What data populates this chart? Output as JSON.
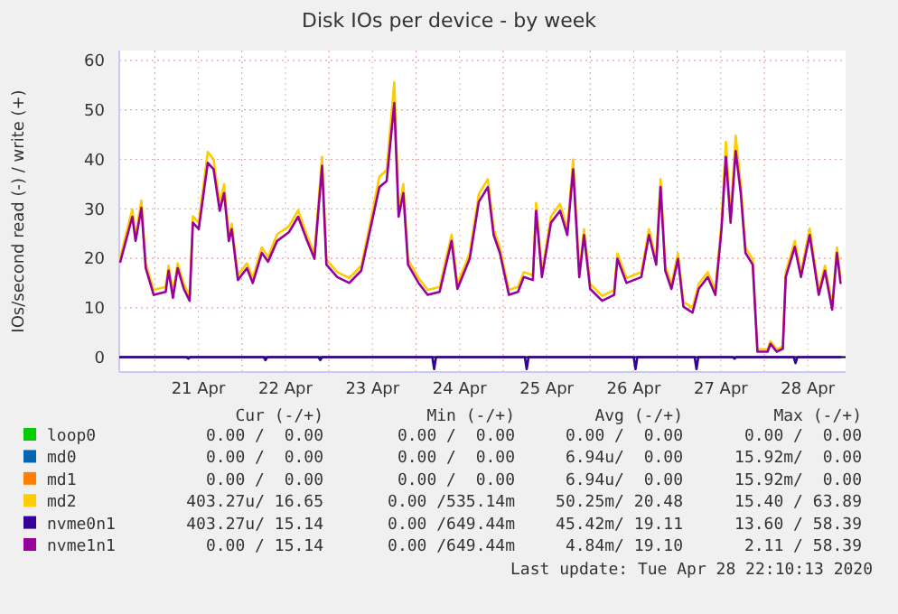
{
  "chart_data": {
    "type": "line",
    "title": "Disk IOs per device - by week",
    "ylabel": "IOs/second read (-) / write (+)",
    "xlim": [
      "2020-04-20T14:12",
      "2020-04-28T22:24"
    ],
    "xticks": [
      {
        "value": "2020-04-21T00:00",
        "label": null
      },
      {
        "value": "2020-04-21T12:00",
        "label": "21 Apr"
      },
      {
        "value": "2020-04-22T00:00",
        "label": null
      },
      {
        "value": "2020-04-22T12:00",
        "label": "22 Apr"
      },
      {
        "value": "2020-04-23T00:00",
        "label": null
      },
      {
        "value": "2020-04-23T12:00",
        "label": "23 Apr"
      },
      {
        "value": "2020-04-24T00:00",
        "label": null
      },
      {
        "value": "2020-04-24T12:00",
        "label": "24 Apr"
      },
      {
        "value": "2020-04-25T00:00",
        "label": null
      },
      {
        "value": "2020-04-25T12:00",
        "label": "25 Apr"
      },
      {
        "value": "2020-04-26T00:00",
        "label": null
      },
      {
        "value": "2020-04-26T12:00",
        "label": "26 Apr"
      },
      {
        "value": "2020-04-27T00:00",
        "label": null
      },
      {
        "value": "2020-04-27T12:00",
        "label": "27 Apr"
      },
      {
        "value": "2020-04-28T00:00",
        "label": null
      },
      {
        "value": "2020-04-28T12:00",
        "label": "28 Apr"
      }
    ],
    "ylim": [
      -3,
      62
    ],
    "yticks": [
      0,
      10,
      20,
      30,
      40,
      50,
      60
    ],
    "grid": true,
    "legend": "bottom",
    "marker": "none",
    "line_style": "solid",
    "x": [
      "2020-04-20T14:30",
      "2020-04-20T17:48",
      "2020-04-20T18:42",
      "2020-04-20T20:18",
      "2020-04-20T21:30",
      "2020-04-20T23:42",
      "2020-04-21T03:00",
      "2020-04-21T03:48",
      "2020-04-21T05:00",
      "2020-04-21T06:18",
      "2020-04-21T08:00",
      "2020-04-21T09:36",
      "2020-04-21T10:30",
      "2020-04-21T12:06",
      "2020-04-21T14:36",
      "2020-04-21T16:12",
      "2020-04-21T17:54",
      "2020-04-21T19:06",
      "2020-04-21T20:24",
      "2020-04-21T21:12",
      "2020-04-21T22:54",
      "2020-04-22T01:24",
      "2020-04-22T03:00",
      "2020-04-22T05:30",
      "2020-04-22T07:12",
      "2020-04-22T09:42",
      "2020-04-22T13:00",
      "2020-04-22T15:30",
      "2020-04-22T18:00",
      "2020-04-22T20:00",
      "2020-04-22T22:06",
      "2020-04-22T23:18",
      "2020-04-23T02:18",
      "2020-04-23T05:36",
      "2020-04-23T08:54",
      "2020-04-23T11:24",
      "2020-04-23T13:54",
      "2020-04-23T15:54",
      "2020-04-23T18:00",
      "2020-04-23T19:12",
      "2020-04-23T20:30",
      "2020-04-23T21:48",
      "2020-04-24T00:42",
      "2020-04-24T03:12",
      "2020-04-24T06:30",
      "2020-04-24T09:48",
      "2020-04-24T11:24",
      "2020-04-24T14:48",
      "2020-04-24T17:18",
      "2020-04-24T19:48",
      "2020-04-24T21:24",
      "2020-04-24T23:06",
      "2020-04-25T01:36",
      "2020-04-25T04:06",
      "2020-04-25T05:42",
      "2020-04-25T08:12",
      "2020-04-25T09:06",
      "2020-04-25T10:42",
      "2020-04-25T13:12",
      "2020-04-25T15:42",
      "2020-04-25T17:42",
      "2020-04-25T19:18",
      "2020-04-25T21:00",
      "2020-04-25T22:18",
      "2020-04-26T00:00",
      "2020-04-26T03:18",
      "2020-04-26T06:36",
      "2020-04-26T07:30",
      "2020-04-26T10:00",
      "2020-04-26T14:06",
      "2020-04-26T16:12",
      "2020-04-26T18:12",
      "2020-04-26T19:24",
      "2020-04-26T20:42",
      "2020-04-26T22:24",
      "2020-04-27T00:12",
      "2020-04-27T01:42",
      "2020-04-27T04:12",
      "2020-04-27T05:54",
      "2020-04-27T08:24",
      "2020-04-27T10:30",
      "2020-04-27T12:12",
      "2020-04-27T13:24",
      "2020-04-27T14:42",
      "2020-04-27T16:06",
      "2020-04-27T17:30",
      "2020-04-27T18:48",
      "2020-04-27T20:48",
      "2020-04-27T22:06",
      "2020-04-28T00:54",
      "2020-04-28T01:42",
      "2020-04-28T03:24",
      "2020-04-28T05:06",
      "2020-04-28T05:54",
      "2020-04-28T08:24",
      "2020-04-28T10:06",
      "2020-04-28T12:30",
      "2020-04-28T15:00",
      "2020-04-28T16:42",
      "2020-04-28T18:42",
      "2020-04-28T20:00",
      "2020-04-28T21:00"
    ],
    "series": [
      {
        "name": "loop0",
        "color": "#00cc00",
        "values": [
          null,
          null,
          null,
          null,
          null,
          null,
          null,
          null,
          null,
          null,
          null,
          null,
          null,
          null,
          null,
          null,
          null,
          null,
          null,
          null,
          null,
          null,
          null,
          null,
          null,
          null,
          null,
          null,
          null,
          null,
          null,
          null,
          null,
          null,
          null,
          null,
          null,
          null,
          null,
          null,
          null,
          null,
          null,
          null,
          null,
          null,
          null,
          null,
          null,
          null,
          null,
          null,
          null,
          null,
          null,
          null,
          null,
          null,
          null,
          null,
          null,
          null,
          null,
          null,
          null,
          null,
          null,
          null,
          null,
          null,
          null,
          null,
          null,
          null,
          null,
          null,
          null,
          null,
          null,
          null,
          null,
          null,
          null,
          null,
          null,
          null,
          null,
          null,
          null,
          null,
          null,
          null,
          null,
          null,
          null,
          null,
          null,
          null,
          null,
          null,
          null,
          null
        ]
      },
      {
        "name": "md0",
        "color": "#0066b3",
        "values": [
          null,
          null,
          null,
          null,
          null,
          null,
          null,
          null,
          null,
          null,
          null,
          null,
          null,
          null,
          null,
          null,
          null,
          null,
          null,
          null,
          null,
          null,
          null,
          null,
          null,
          null,
          null,
          null,
          null,
          null,
          null,
          null,
          null,
          null,
          null,
          null,
          null,
          null,
          null,
          null,
          null,
          null,
          null,
          null,
          null,
          null,
          null,
          null,
          null,
          null,
          null,
          null,
          null,
          null,
          null,
          null,
          null,
          null,
          null,
          null,
          null,
          null,
          null,
          null,
          null,
          null,
          null,
          null,
          null,
          null,
          null,
          null,
          null,
          null,
          null,
          null,
          null,
          null,
          null,
          null,
          null,
          null,
          null,
          null,
          null,
          null,
          null,
          null,
          null,
          null,
          null,
          null,
          null,
          null,
          null,
          null,
          null,
          null,
          null,
          null,
          null,
          null
        ]
      },
      {
        "name": "md1",
        "color": "#ff8000",
        "values": [
          null,
          null,
          null,
          null,
          null,
          null,
          null,
          null,
          null,
          null,
          null,
          null,
          null,
          null,
          null,
          null,
          null,
          null,
          null,
          null,
          null,
          null,
          null,
          null,
          null,
          null,
          null,
          null,
          null,
          null,
          null,
          null,
          null,
          null,
          null,
          null,
          null,
          null,
          null,
          null,
          null,
          null,
          null,
          null,
          null,
          null,
          null,
          null,
          null,
          null,
          null,
          null,
          null,
          null,
          null,
          null,
          null,
          null,
          null,
          null,
          null,
          null,
          null,
          null,
          null,
          null,
          null,
          null,
          null,
          null,
          null,
          null,
          null,
          null,
          null,
          null,
          null,
          null,
          null,
          null,
          null,
          null,
          null,
          null,
          null,
          null,
          null,
          null,
          null,
          null,
          null,
          null,
          null,
          null,
          null,
          null,
          null,
          null,
          null,
          null,
          null,
          null
        ]
      },
      {
        "name": "md2",
        "color": "#ffcc00",
        "values": [
          20.3,
          29.9,
          24.5,
          31.7,
          19,
          13.6,
          14.2,
          18.5,
          13,
          19,
          14.8,
          12.4,
          28.5,
          27.2,
          41.5,
          40,
          31,
          35,
          24.5,
          27,
          16.6,
          19,
          16,
          22.2,
          20.3,
          24.8,
          26.5,
          29.7,
          24.5,
          21,
          40.5,
          19.7,
          17.2,
          16,
          18.5,
          27.2,
          36.5,
          37.8,
          55.6,
          29.7,
          35,
          19.7,
          16,
          13.6,
          14.2,
          24.8,
          14.8,
          21,
          33,
          36,
          25.9,
          22.2,
          13.6,
          14.2,
          17.2,
          16.6,
          31.2,
          17.2,
          28.5,
          31,
          25.9,
          40,
          17.2,
          25.9,
          14.8,
          12.4,
          13.6,
          21,
          16,
          17.2,
          25.9,
          19.7,
          36,
          18.5,
          14.8,
          21,
          11.2,
          10,
          14.8,
          17.2,
          13.6,
          27.2,
          43.5,
          28.5,
          44.8,
          35,
          22.2,
          19.7,
          1.6,
          1.6,
          3.2,
          1.6,
          2.2,
          17.2,
          23.5,
          17.2,
          26,
          13.6,
          18.5,
          10.6,
          22.2,
          16
        ]
      },
      {
        "name": "nvme0n1",
        "color": "#330099",
        "x": [
          "2020-04-20T14:30",
          "2020-04-21T08:45",
          "2020-04-21T09:15",
          "2020-04-21T09:45",
          "2020-04-22T06:00",
          "2020-04-22T06:30",
          "2020-04-22T07:00",
          "2020-04-22T21:06",
          "2020-04-22T21:36",
          "2020-04-22T22:06",
          "2020-04-24T04:30",
          "2020-04-24T05:00",
          "2020-04-24T05:30",
          "2020-04-25T06:00",
          "2020-04-25T06:30",
          "2020-04-25T07:00",
          "2020-04-26T12:00",
          "2020-04-26T12:30",
          "2020-04-26T13:00",
          "2020-04-27T04:48",
          "2020-04-27T05:18",
          "2020-04-27T05:48",
          "2020-04-27T15:18",
          "2020-04-27T15:48",
          "2020-04-27T16:18",
          "2020-04-28T08:06",
          "2020-04-28T08:36",
          "2020-04-28T09:06",
          "2020-04-28T21:00"
        ],
        "values": [
          0,
          0,
          -0.3,
          0,
          0,
          -0.6,
          0,
          0,
          -0.6,
          0,
          0,
          -2.4,
          0,
          0,
          -2.4,
          0,
          0,
          -2.4,
          0,
          0,
          -2.4,
          0,
          0,
          -0.3,
          0,
          0,
          -1.2,
          0,
          0
        ]
      },
      {
        "name": "nvme1n1",
        "color": "#990099",
        "values": [
          19.3,
          28.4,
          23.5,
          30.2,
          18,
          12.6,
          13.2,
          17.5,
          12,
          18,
          13.8,
          11.4,
          27.2,
          25.9,
          39.3,
          38,
          29.6,
          33.2,
          23.5,
          25.9,
          15.6,
          18,
          15,
          21.1,
          19.3,
          23.5,
          25.3,
          28.4,
          23.5,
          19.9,
          38.7,
          18.7,
          16.2,
          15,
          17.5,
          25.9,
          34.4,
          35.6,
          51.4,
          28.4,
          33.2,
          18.7,
          15,
          12.6,
          13.2,
          23.5,
          13.8,
          19.9,
          31.4,
          34.4,
          24.7,
          21.1,
          12.6,
          13.2,
          16.2,
          15.6,
          29.6,
          16.2,
          27.2,
          29.6,
          24.7,
          38,
          16.2,
          24.7,
          13.8,
          11.4,
          12.6,
          19.9,
          15,
          16.2,
          24.7,
          18.7,
          34.4,
          17.5,
          13.8,
          19.9,
          10.2,
          9,
          13.8,
          16.2,
          12.6,
          25.9,
          40.5,
          27.2,
          41.7,
          33.2,
          21.1,
          18.7,
          1.1,
          1.1,
          2.7,
          1.1,
          1.7,
          16.2,
          22.3,
          16.2,
          24.7,
          12.6,
          17.5,
          9.6,
          21.1,
          15
        ]
      }
    ],
    "annotations": [
      "Cur (-/+)",
      "Min (-/+)",
      "Avg (-/+)",
      "Max (-/+)",
      "0.00 /  0.00",
      "0.00 /  0.00",
      "0.00 /  0.00",
      "0.00 /  0.00",
      "0.00 /  0.00",
      "0.00 /  0.00",
      "6.94u/  0.00",
      "15.92m/  0.00",
      "0.00 /  0.00",
      "0.00 /  0.00",
      "6.94u/  0.00",
      "15.92m/  0.00",
      "403.27u/ 16.65",
      "0.00 /535.14m",
      "50.25m/ 20.48",
      "15.40 / 63.89",
      "403.27u/ 15.14",
      "0.00 /649.44m",
      "45.42m/ 19.11",
      "13.60 / 58.39",
      "0.00 / 15.14",
      "0.00 /649.44m",
      "4.84m/ 19.10",
      "2.11 / 58.39",
      "Last update: Tue Apr 28 22:10:13 2020"
    ]
  }
}
